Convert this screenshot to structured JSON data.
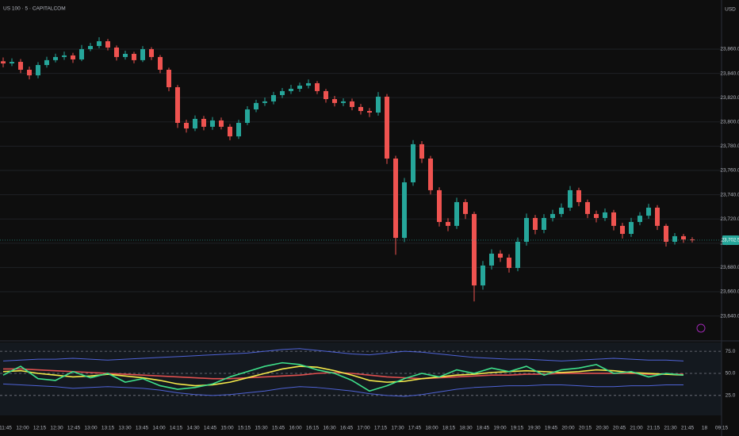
{
  "chart_data": {
    "type": "candlestick",
    "title": "US 100 · 5 · CAPITALCOM",
    "currency": "USD",
    "up_color": "#26a69a",
    "down_color": "#ef5350",
    "open": [
      23850.0,
      23848.2,
      23849.5,
      23843.0,
      23838.4,
      23846.9,
      23850.9,
      23853.5,
      23854.8,
      23851.5,
      23860.0,
      23862.6,
      23866.5,
      23861.3,
      23853.5,
      23856.1,
      23850.9,
      23860.0,
      23853.5,
      23843.0,
      23828.6,
      23799.2,
      23794.6,
      23802.5,
      23796.0,
      23801.2,
      23796.0,
      23788.1,
      23799.2,
      23810.3,
      23815.6,
      23816.9,
      23822.1,
      23825.4,
      23827.3,
      23829.9,
      23831.9,
      23825.4,
      23818.8,
      23815.6,
      23816.9,
      23812.3,
      23809.0,
      23807.7,
      23820.8,
      23769.8,
      23704.4,
      23750.2,
      23781.6,
      23769.8,
      23743.7,
      23717.5,
      23714.3,
      23733.9,
      23724.1,
      23665.2,
      23681.6,
      23691.4,
      23688.1,
      23679.6,
      23701.2,
      23720.8,
      23711.0,
      23720.8,
      23724.1,
      23729.3,
      23743.7,
      23733.9,
      23724.1,
      23720.8,
      23725.4,
      23714.3,
      23707.7,
      23717.5,
      23722.7,
      23729.3,
      23714.3,
      23701.2,
      23705.8,
      23703.1
    ],
    "high": [
      23853.1,
      23852.4,
      23851.8,
      23845.6,
      23849.3,
      23853.7,
      23856.2,
      23857.9,
      23857.0,
      23863.4,
      23865.1,
      23869.8,
      23868.4,
      23863.0,
      23858.7,
      23857.8,
      23862.5,
      23861.6,
      23855.2,
      23844.7,
      23830.4,
      23801.8,
      23805.3,
      23804.9,
      23804.0,
      23803.6,
      23798.2,
      23801.7,
      23812.9,
      23818.2,
      23820.1,
      23824.8,
      23828.0,
      23830.6,
      23832.4,
      23835.0,
      23833.7,
      23827.2,
      23821.4,
      23819.5,
      23819.2,
      23814.8,
      23811.5,
      23824.6,
      23823.0,
      23772.1,
      23753.8,
      23785.0,
      23784.2,
      23772.0,
      23746.1,
      23720.6,
      23737.5,
      23736.4,
      23726.0,
      23685.3,
      23695.0,
      23694.2,
      23690.9,
      23704.7,
      23724.5,
      23723.3,
      23724.0,
      23727.6,
      23732.8,
      23747.2,
      23745.8,
      23736.0,
      23726.9,
      23728.6,
      23727.5,
      23716.8,
      23720.9,
      23725.6,
      23732.5,
      23731.4,
      23716.0,
      23708.4,
      23707.6,
      23704.9
    ],
    "low": [
      23845.0,
      23846.0,
      23840.2,
      23835.1,
      23836.0,
      23844.8,
      23849.0,
      23851.2,
      23848.6,
      23850.1,
      23858.3,
      23860.7,
      23858.9,
      23850.6,
      23851.4,
      23848.3,
      23849.4,
      23851.0,
      23840.1,
      23825.3,
      23795.0,
      23791.2,
      23792.4,
      23793.1,
      23793.5,
      23793.8,
      23784.9,
      23786.0,
      23797.4,
      23808.0,
      23813.2,
      23814.5,
      23819.7,
      23823.1,
      23824.8,
      23827.6,
      23822.9,
      23815.9,
      23812.8,
      23813.0,
      23809.6,
      23806.1,
      23804.0,
      23805.2,
      23765.4,
      23690.5,
      23700.9,
      23747.3,
      23766.1,
      23740.2,
      23713.8,
      23709.9,
      23711.8,
      23720.0,
      23652.0,
      23661.7,
      23678.3,
      23684.6,
      23675.8,
      23676.9,
      23698.0,
      23707.4,
      23708.2,
      23717.9,
      23721.5,
      23726.6,
      23730.5,
      23720.7,
      23717.2,
      23718.3,
      23710.6,
      23703.9,
      23705.2,
      23714.8,
      23720.1,
      23710.9,
      23697.3,
      23698.9,
      23700.4,
      23700.6
    ],
    "close": [
      23848.2,
      23849.5,
      23843.0,
      23838.4,
      23846.9,
      23850.9,
      23853.5,
      23854.8,
      23851.5,
      23860.0,
      23862.6,
      23866.5,
      23861.3,
      23853.5,
      23856.1,
      23850.9,
      23860.0,
      23853.5,
      23843.0,
      23828.6,
      23799.2,
      23794.6,
      23802.5,
      23796.0,
      23801.2,
      23796.0,
      23788.1,
      23799.2,
      23810.3,
      23815.6,
      23816.9,
      23822.1,
      23825.4,
      23827.3,
      23829.9,
      23831.9,
      23825.4,
      23818.8,
      23815.6,
      23816.9,
      23812.3,
      23809.0,
      23807.7,
      23820.8,
      23769.8,
      23704.4,
      23750.2,
      23781.6,
      23769.8,
      23743.7,
      23717.5,
      23714.3,
      23733.9,
      23724.1,
      23665.2,
      23681.6,
      23691.4,
      23688.1,
      23679.6,
      23701.2,
      23720.8,
      23711.0,
      23720.8,
      23724.1,
      23729.3,
      23743.7,
      23733.9,
      23724.1,
      23720.8,
      23725.4,
      23714.3,
      23707.7,
      23717.5,
      23722.7,
      23729.3,
      23714.3,
      23701.2,
      23705.8,
      23703.1,
      23702.5
    ],
    "last_price_label": "23,702.5",
    "ylim": [
      23620.8,
      23900.5
    ],
    "yticks": [
      {
        "value": 23640,
        "label": "23,640.0"
      },
      {
        "value": 23660,
        "label": "23,660.0"
      },
      {
        "value": 23680,
        "label": "23,680.0"
      },
      {
        "value": 23700,
        "label": "23,700.0"
      },
      {
        "value": 23720,
        "label": "23,720.0"
      },
      {
        "value": 23740,
        "label": "23,740.0"
      },
      {
        "value": 23760,
        "label": "23,760.0"
      },
      {
        "value": 23780,
        "label": "23,780.0"
      },
      {
        "value": 23800,
        "label": "23,800.0"
      },
      {
        "value": 23820,
        "label": "23,820.0"
      },
      {
        "value": 23840,
        "label": "23,840.0"
      },
      {
        "value": 23860,
        "label": "23,860.0"
      }
    ],
    "grid": true,
    "time_labels": [
      "11:45",
      "12:00",
      "12:15",
      "12:30",
      "12:45",
      "13:00",
      "13:15",
      "13:30",
      "13:45",
      "14:00",
      "14:15",
      "14:30",
      "14:45",
      "15:00",
      "15:15",
      "15:30",
      "15:45",
      "16:00",
      "16:15",
      "16:30",
      "16:45",
      "17:00",
      "17:15",
      "17:30",
      "17:45",
      "18:00",
      "18:15",
      "18:30",
      "18:45",
      "19:00",
      "19:15",
      "19:30",
      "19:45",
      "20:00",
      "20:15",
      "20:30",
      "20:45",
      "21:00",
      "21:15",
      "21:30",
      "21:45",
      "18",
      "09:15"
    ],
    "indicator": {
      "type": "line",
      "ylim": [
        6,
        85
      ],
      "yticks": [
        {
          "value": 25,
          "label": "25.0"
        },
        {
          "value": 50,
          "label": "50.0"
        },
        {
          "value": 75,
          "label": "75.0"
        }
      ],
      "series": [
        {
          "color": "#4f63d6",
          "values": [
            64,
            65,
            66,
            66,
            67,
            66,
            65,
            66,
            67,
            68,
            69,
            70,
            71,
            72,
            73,
            75,
            77,
            78,
            76,
            74,
            72,
            71,
            73,
            75,
            74,
            72,
            70,
            68,
            67,
            66,
            66,
            65,
            64,
            65,
            66,
            67,
            66,
            65,
            65,
            64
          ]
        },
        {
          "color": "#4f63d6",
          "values": [
            38,
            37,
            36,
            35,
            33,
            34,
            35,
            34,
            33,
            31,
            28,
            26,
            25,
            26,
            28,
            30,
            33,
            35,
            34,
            32,
            30,
            27,
            25,
            24,
            26,
            29,
            32,
            34,
            35,
            36,
            36,
            37,
            37,
            36,
            35,
            35,
            36,
            36,
            37,
            37
          ]
        },
        {
          "color": "#e0504f",
          "values": [
            55,
            55,
            54,
            53,
            52,
            51,
            50,
            49,
            48,
            47,
            46,
            45,
            44,
            44,
            45,
            46,
            47,
            48,
            50,
            51,
            50,
            48,
            46,
            45,
            44,
            45,
            46,
            47,
            48,
            48,
            49,
            49,
            50,
            50,
            50,
            50,
            50,
            49,
            49,
            49
          ]
        },
        {
          "color": "#f5e94a",
          "values": [
            52,
            53,
            50,
            48,
            46,
            47,
            49,
            47,
            45,
            42,
            38,
            36,
            37,
            40,
            45,
            50,
            55,
            58,
            57,
            53,
            48,
            42,
            40,
            41,
            44,
            46,
            48,
            49,
            51,
            52,
            53,
            52,
            51,
            52,
            54,
            53,
            51,
            50,
            49,
            48
          ]
        },
        {
          "color": "#3ee08a",
          "values": [
            48,
            58,
            44,
            42,
            52,
            45,
            50,
            40,
            44,
            36,
            32,
            34,
            38,
            46,
            52,
            58,
            62,
            60,
            54,
            50,
            42,
            30,
            36,
            44,
            50,
            46,
            54,
            50,
            56,
            52,
            58,
            48,
            54,
            56,
            60,
            50,
            52,
            46,
            50,
            48
          ]
        }
      ]
    }
  }
}
